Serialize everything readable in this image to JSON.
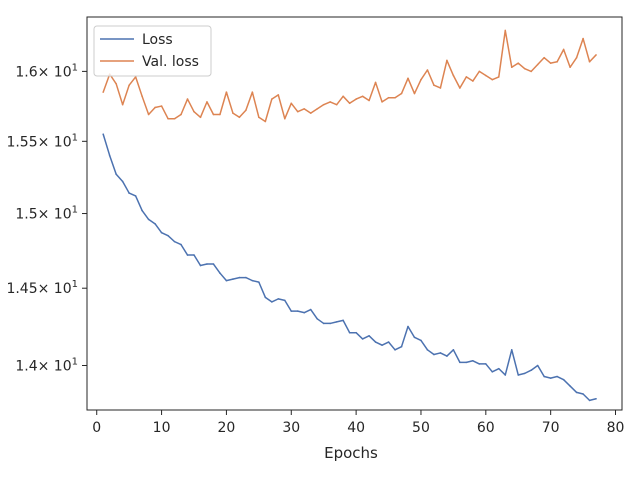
{
  "chart_data": {
    "type": "line",
    "xlabel": "Epochs",
    "ylabel": "",
    "xlim": [
      -1.5,
      81
    ],
    "ylim": [
      13.72,
      16.4
    ],
    "y_scale": "log",
    "x_ticks": [
      0,
      10,
      20,
      30,
      40,
      50,
      60,
      70,
      80
    ],
    "y_ticks": [
      {
        "value": 14.0,
        "mantissa": "1.4",
        "exp": "1"
      },
      {
        "value": 14.5,
        "mantissa": "1.45",
        "exp": "1"
      },
      {
        "value": 15.0,
        "mantissa": "1.5",
        "exp": "1"
      },
      {
        "value": 15.5,
        "mantissa": "1.55",
        "exp": "1"
      },
      {
        "value": 16.0,
        "mantissa": "1.6",
        "exp": "1"
      }
    ],
    "tick_multiplier": "× 10",
    "legend_position": "top-left",
    "grid": false,
    "series": [
      {
        "name": "Loss",
        "color": "#4c72b0",
        "x": [
          1,
          2,
          3,
          4,
          5,
          6,
          7,
          8,
          9,
          10,
          11,
          12,
          13,
          14,
          15,
          16,
          17,
          18,
          19,
          20,
          21,
          22,
          23,
          24,
          25,
          26,
          27,
          28,
          29,
          30,
          31,
          32,
          33,
          34,
          35,
          36,
          37,
          38,
          39,
          40,
          41,
          42,
          43,
          44,
          45,
          46,
          47,
          48,
          49,
          50,
          51,
          52,
          53,
          54,
          55,
          56,
          57,
          58,
          59,
          60,
          61,
          62,
          63,
          64,
          65,
          66,
          67,
          68,
          69,
          70,
          71,
          72,
          73,
          74,
          75,
          76,
          77
        ],
        "values": [
          15.55,
          15.4,
          15.27,
          15.22,
          15.14,
          15.12,
          15.02,
          14.96,
          14.93,
          14.87,
          14.85,
          14.81,
          14.79,
          14.72,
          14.72,
          14.65,
          14.66,
          14.66,
          14.6,
          14.55,
          14.56,
          14.57,
          14.57,
          14.55,
          14.54,
          14.44,
          14.41,
          14.43,
          14.42,
          14.35,
          14.35,
          14.34,
          14.36,
          14.3,
          14.27,
          14.27,
          14.28,
          14.29,
          14.21,
          14.21,
          14.17,
          14.19,
          14.15,
          14.13,
          14.15,
          14.1,
          14.12,
          14.25,
          14.18,
          14.16,
          14.1,
          14.07,
          14.08,
          14.06,
          14.1,
          14.02,
          14.02,
          14.03,
          14.01,
          14.01,
          13.96,
          13.98,
          13.94,
          14.1,
          13.94,
          13.95,
          13.97,
          14.0,
          13.93,
          13.92,
          13.93,
          13.91,
          13.87,
          13.83,
          13.82,
          13.78,
          13.79
        ]
      },
      {
        "name": "Val. loss",
        "color": "#dd8452",
        "x": [
          1,
          2,
          3,
          4,
          5,
          6,
          7,
          8,
          9,
          10,
          11,
          12,
          13,
          14,
          15,
          16,
          17,
          18,
          19,
          20,
          21,
          22,
          23,
          24,
          25,
          26,
          27,
          28,
          29,
          30,
          31,
          32,
          33,
          34,
          35,
          36,
          37,
          38,
          39,
          40,
          41,
          42,
          43,
          44,
          45,
          46,
          47,
          48,
          49,
          50,
          51,
          52,
          53,
          54,
          55,
          56,
          57,
          58,
          59,
          60,
          61,
          62,
          63,
          64,
          65,
          66,
          67,
          68,
          69,
          70,
          71,
          72,
          73,
          74,
          75,
          76,
          77
        ],
        "values": [
          15.85,
          15.98,
          15.91,
          15.76,
          15.9,
          15.96,
          15.82,
          15.69,
          15.74,
          15.75,
          15.66,
          15.66,
          15.69,
          15.8,
          15.71,
          15.67,
          15.78,
          15.69,
          15.69,
          15.85,
          15.7,
          15.67,
          15.72,
          15.85,
          15.67,
          15.64,
          15.8,
          15.83,
          15.66,
          15.77,
          15.71,
          15.73,
          15.7,
          15.73,
          15.76,
          15.78,
          15.76,
          15.82,
          15.77,
          15.8,
          15.82,
          15.79,
          15.92,
          15.78,
          15.81,
          15.81,
          15.84,
          15.95,
          15.84,
          15.94,
          16.01,
          15.9,
          15.88,
          16.08,
          15.97,
          15.88,
          15.96,
          15.93,
          16.0,
          15.97,
          15.94,
          15.96,
          16.3,
          16.03,
          16.06,
          16.02,
          16.0,
          16.05,
          16.1,
          16.06,
          16.07,
          16.16,
          16.03,
          16.1,
          16.24,
          16.07,
          16.12
        ]
      }
    ]
  }
}
